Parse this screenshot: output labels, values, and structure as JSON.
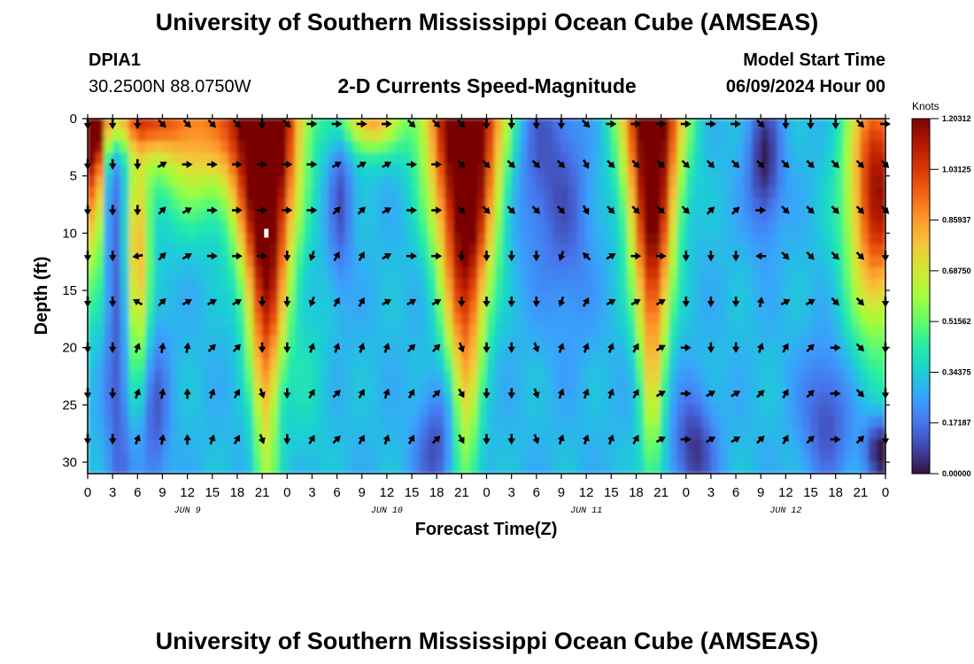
{
  "header": {
    "title": "University of Southern Mississippi Ocean Cube (AMSEAS)",
    "station_id": "DPIA1",
    "station_coords": "30.2500N  88.0750W",
    "product_title": "2-D Currents Speed-Magnitude",
    "model_start_label": "Model Start Time",
    "model_start_value": "06/09/2024 Hour 00"
  },
  "footer": {
    "title": "University of Southern Mississippi Ocean Cube (AMSEAS)"
  },
  "colors": {
    "turbo": [
      "#30123b",
      "#4145ab",
      "#4675ed",
      "#39a2fc",
      "#1bcfd4",
      "#24eca6",
      "#61fc6c",
      "#a4fc3b",
      "#d1e834",
      "#f3c63a",
      "#fe9b2d",
      "#f36315",
      "#d93806",
      "#b11901",
      "#7a0402"
    ]
  },
  "chart_data": {
    "type": "heatmap",
    "title": "2-D Currents Speed-Magnitude",
    "xlabel": "Forecast Time(Z)",
    "ylabel": "Depth (ft)",
    "x_range_hours": [
      0,
      96
    ],
    "ylim": [
      0,
      31
    ],
    "x_ticks_hours": [
      0,
      3,
      6,
      9,
      12,
      15,
      18,
      21,
      24,
      27,
      30,
      33,
      36,
      39,
      42,
      45,
      48,
      51,
      54,
      57,
      60,
      63,
      66,
      69,
      72,
      75,
      78,
      81,
      84,
      87,
      90,
      93,
      96
    ],
    "x_tick_labels": [
      "0",
      "3",
      "6",
      "9",
      "12",
      "15",
      "18",
      "21",
      "0",
      "3",
      "6",
      "9",
      "12",
      "15",
      "18",
      "21",
      "0",
      "3",
      "6",
      "9",
      "12",
      "15",
      "18",
      "21",
      "0",
      "3",
      "6",
      "9",
      "12",
      "15",
      "18",
      "21",
      "0"
    ],
    "day_labels": [
      {
        "hour": 12,
        "label": "JUN 9"
      },
      {
        "hour": 36,
        "label": "JUN 10"
      },
      {
        "hour": 60,
        "label": "JUN 11"
      },
      {
        "hour": 84,
        "label": "JUN 12"
      }
    ],
    "y_ticks": [
      0,
      5,
      10,
      15,
      20,
      25,
      30
    ],
    "y_tick_labels": [
      "0",
      "5",
      "10",
      "15",
      "20",
      "25",
      "30"
    ],
    "colorbar": {
      "unit": "Knots",
      "min": 0.0,
      "max": 1.20312,
      "tick_labels": [
        "1.20312",
        "1.03125",
        "0.85937",
        "0.68750",
        "0.51562",
        "0.34375",
        "0.17187",
        "0.00000"
      ]
    },
    "speed_features": [
      {
        "hour": 0.8,
        "depth_center": 0,
        "speed": 0.95,
        "hour_width": 1.2,
        "depth_width": 12,
        "shrink": 0
      },
      {
        "hour": 6,
        "depth_center": 13,
        "speed": 0.55,
        "hour_width": 1.5,
        "depth_width": 10,
        "shrink": 0
      },
      {
        "hour": 5,
        "depth_center": 0,
        "speed": 0.55,
        "hour_width": 6,
        "depth_width": 3,
        "shrink": 0
      },
      {
        "hour": 13,
        "depth_center": 1,
        "speed": 0.5,
        "hour_width": 6,
        "depth_width": 7,
        "shrink": 0
      },
      {
        "hour": 21.5,
        "depth_center": 0,
        "speed": 1.2,
        "hour_width": 4.3,
        "depth_width": 26,
        "shrink": 0.65
      },
      {
        "hour": 3.8,
        "depth_center": 15,
        "speed": -0.2,
        "hour_width": 1.6,
        "depth_width": 30,
        "shrink": 0
      },
      {
        "hour": 8,
        "depth_center": 26,
        "speed": -0.18,
        "hour_width": 1.8,
        "depth_width": 8,
        "shrink": 0
      },
      {
        "hour": 30.5,
        "depth_center": 7,
        "speed": -0.18,
        "hour_width": 1.4,
        "depth_width": 8,
        "shrink": 0
      },
      {
        "hour": 34,
        "depth_center": 0,
        "speed": 0.55,
        "hour_width": 3.5,
        "depth_width": 3,
        "shrink": 0
      },
      {
        "hour": 45.5,
        "depth_center": 0,
        "speed": 1.15,
        "hour_width": 4.8,
        "depth_width": 25,
        "shrink": 0.65
      },
      {
        "hour": 42,
        "depth_center": 29,
        "speed": -0.2,
        "hour_width": 2.5,
        "depth_width": 5,
        "shrink": 0
      },
      {
        "hour": 54,
        "depth_center": 2,
        "speed": -0.18,
        "hour_width": 4,
        "depth_width": 10,
        "shrink": 0
      },
      {
        "hour": 68,
        "depth_center": 0,
        "speed": 1.1,
        "hour_width": 3.6,
        "depth_width": 24,
        "shrink": 0.6
      },
      {
        "hour": 73,
        "depth_center": 29,
        "speed": -0.25,
        "hour_width": 2.5,
        "depth_width": 5,
        "shrink": 0
      },
      {
        "hour": 81.5,
        "depth_center": 4,
        "speed": -0.28,
        "hour_width": 2,
        "depth_width": 6,
        "shrink": 0
      },
      {
        "hour": 89,
        "depth_center": 26,
        "speed": -0.2,
        "hour_width": 3,
        "depth_width": 6,
        "shrink": 0
      },
      {
        "hour": 95.5,
        "depth_center": 29,
        "speed": -0.32,
        "hour_width": 2,
        "depth_width": 3,
        "shrink": 0
      },
      {
        "hour": 95,
        "depth_center": 6,
        "speed": 0.85,
        "hour_width": 3.5,
        "depth_width": 12,
        "shrink": 0
      },
      {
        "hour": 58,
        "depth_center": 10,
        "speed": -0.12,
        "hour_width": 3,
        "depth_width": 10,
        "shrink": 0
      },
      {
        "hour": 26,
        "depth_center": 22,
        "speed": 0.08,
        "hour_width": 3,
        "depth_width": 8,
        "shrink": 0
      }
    ],
    "vector_depths_ft": [
      0,
      4,
      8,
      12,
      16,
      20,
      24,
      28
    ],
    "vector_directions_deg": [
      [
        180,
        180,
        180,
        135,
        135,
        135,
        135,
        180,
        135,
        90,
        90,
        90,
        90,
        135,
        135,
        135,
        180,
        180,
        180,
        180,
        135,
        90,
        90,
        90,
        90,
        90,
        90,
        135,
        180,
        180,
        180,
        135,
        90
      ],
      [
        180,
        180,
        180,
        60,
        90,
        90,
        90,
        90,
        90,
        90,
        60,
        60,
        60,
        90,
        90,
        135,
        135,
        135,
        135,
        135,
        150,
        135,
        135,
        135,
        135,
        135,
        135,
        135,
        135,
        135,
        135,
        135,
        135
      ],
      [
        180,
        180,
        180,
        45,
        60,
        90,
        90,
        90,
        90,
        90,
        45,
        45,
        60,
        90,
        90,
        135,
        135,
        135,
        135,
        135,
        150,
        135,
        135,
        135,
        135,
        45,
        45,
        90,
        135,
        135,
        135,
        135,
        135
      ],
      [
        180,
        180,
        260,
        45,
        60,
        90,
        90,
        90,
        180,
        200,
        30,
        30,
        60,
        90,
        90,
        180,
        180,
        180,
        180,
        200,
        315,
        60,
        90,
        90,
        180,
        180,
        180,
        270,
        135,
        135,
        135,
        135,
        180
      ],
      [
        180,
        180,
        300,
        45,
        60,
        60,
        60,
        180,
        180,
        200,
        30,
        30,
        60,
        60,
        60,
        180,
        180,
        180,
        180,
        200,
        30,
        60,
        60,
        60,
        180,
        180,
        180,
        10,
        60,
        60,
        135,
        135,
        180
      ],
      [
        180,
        180,
        20,
        10,
        10,
        45,
        45,
        180,
        180,
        20,
        20,
        20,
        20,
        45,
        45,
        160,
        180,
        180,
        160,
        20,
        20,
        20,
        30,
        60,
        90,
        180,
        180,
        20,
        30,
        45,
        90,
        135,
        180
      ],
      [
        180,
        180,
        20,
        10,
        0,
        20,
        30,
        160,
        180,
        30,
        45,
        30,
        20,
        30,
        45,
        150,
        180,
        180,
        160,
        20,
        20,
        20,
        30,
        60,
        90,
        60,
        60,
        45,
        30,
        45,
        90,
        135,
        180
      ],
      [
        180,
        180,
        20,
        10,
        0,
        20,
        30,
        160,
        180,
        30,
        45,
        30,
        20,
        30,
        45,
        150,
        180,
        180,
        160,
        20,
        20,
        20,
        30,
        60,
        90,
        60,
        60,
        45,
        30,
        45,
        90,
        45,
        180
      ]
    ],
    "marker": {
      "hour": 21.5,
      "depth_ft": 10,
      "color": "#ffffff"
    }
  }
}
